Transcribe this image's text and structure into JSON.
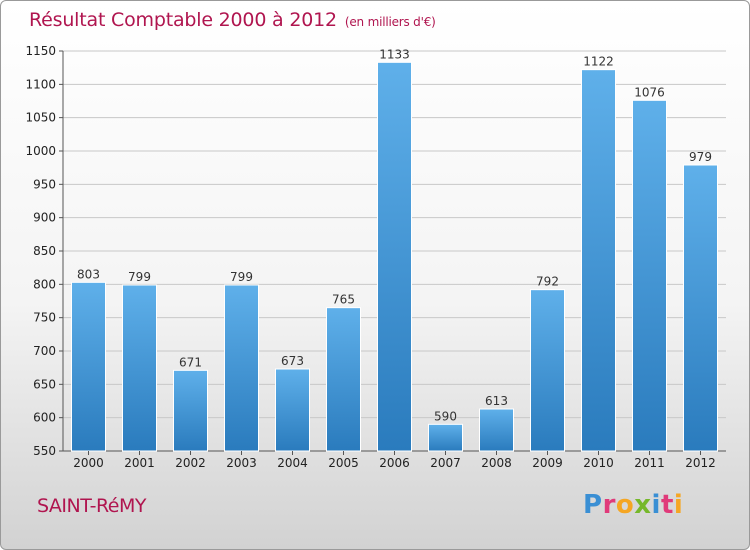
{
  "header": {
    "title": "Résultat Comptable 2000 à 2012",
    "subtitle": "(en milliers d'€)"
  },
  "footer": {
    "commune": "SAINT-RéMY",
    "logo": "Proxiti"
  },
  "colors": {
    "title": "#b0154f",
    "bar_light": "#5fb0ea",
    "bar_dark": "#2a7bbd",
    "grid": "#c8c8c8"
  },
  "chart_data": {
    "type": "bar",
    "title": "Résultat Comptable 2000 à 2012",
    "subtitle": "(en milliers d'€)",
    "xlabel": "",
    "ylabel": "",
    "categories": [
      "2000",
      "2001",
      "2002",
      "2003",
      "2004",
      "2005",
      "2006",
      "2007",
      "2008",
      "2009",
      "2010",
      "2011",
      "2012"
    ],
    "values": [
      803,
      799,
      671,
      799,
      673,
      765,
      1133,
      590,
      613,
      792,
      1122,
      1076,
      979
    ],
    "ylim": [
      550,
      1150
    ],
    "yticks": [
      550,
      600,
      650,
      700,
      750,
      800,
      850,
      900,
      950,
      1000,
      1050,
      1100,
      1150
    ],
    "grid": true,
    "legend": "none"
  }
}
